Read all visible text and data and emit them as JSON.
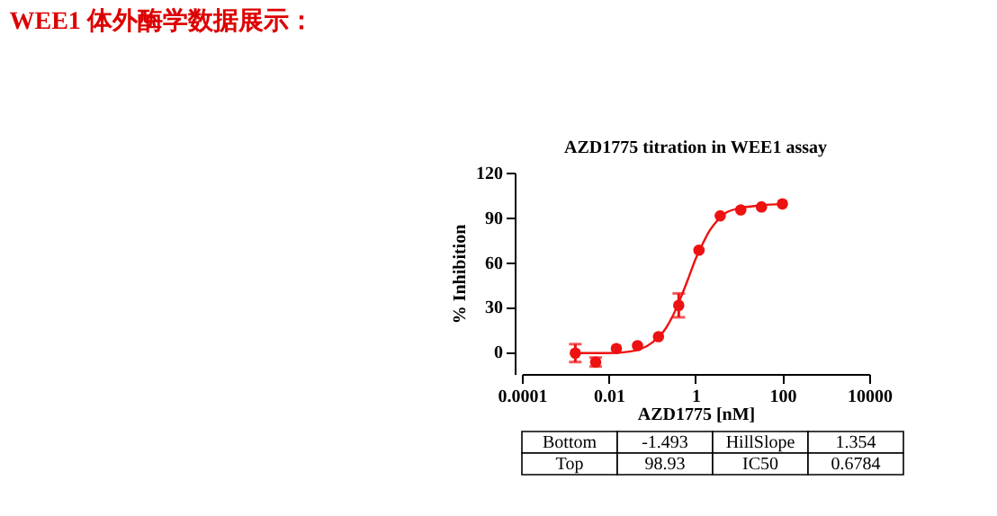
{
  "chart_data": {
    "type": "scatter",
    "title": "AZD1775 titration in WEE1 assay",
    "xlabel": "AZD1775 [nM]",
    "ylabel": "% Inhibition",
    "annotations": [
      "WEE1 体外酶学数据展示：",
      "Bottom",
      "-1.493",
      "HillSlope",
      "1.354",
      "Top",
      "98.93",
      "IC50",
      "0.6784"
    ],
    "log": "x",
    "grid": false,
    "xlim": [
      0.0001,
      10000
    ],
    "xticks": [
      0.0001,
      0.01,
      1,
      100,
      10000
    ],
    "ylim": [
      -15,
      120
    ],
    "yticks": [
      0,
      30,
      60,
      90,
      120
    ],
    "series": [
      {
        "marker": "circle",
        "color": "#ee1111",
        "x": [
          0.0017,
          0.005,
          0.015,
          0.046,
          0.14,
          0.41,
          1.2,
          3.7,
          11,
          33,
          100
        ],
        "values": [
          -1,
          -7,
          2,
          4,
          10,
          31,
          68,
          91,
          95,
          97,
          99
        ],
        "errors": [
          6,
          3,
          null,
          null,
          null,
          8,
          null,
          null,
          null,
          null,
          null
        ]
      },
      {
        "type": "line",
        "marker": "none",
        "color": "#ee1111",
        "x": [
          0.0017,
          0.01,
          0.03,
          0.1,
          0.2,
          0.3,
          0.5,
          0.7,
          1,
          1.5,
          2,
          3,
          5,
          10,
          30,
          100
        ],
        "values": [
          -1,
          -1,
          0,
          6,
          15,
          24,
          39,
          50,
          62,
          73,
          80,
          87,
          93,
          96,
          98,
          99
        ]
      }
    ]
  }
}
